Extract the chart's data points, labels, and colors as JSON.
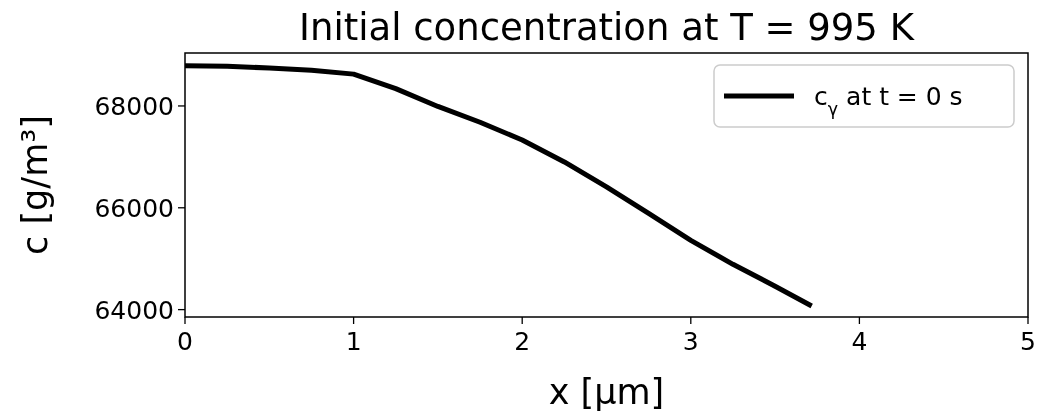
{
  "chart_data": {
    "type": "line",
    "title": "Initial concentration at T = 995 K",
    "xlabel": "x [μm]",
    "ylabel": "c [g/m³]",
    "x": [
      0,
      0.25,
      0.5,
      0.75,
      1,
      1.25,
      1.5,
      1.75,
      2,
      2.25,
      2.5,
      2.75,
      3,
      3.25,
      3.5,
      3.717
    ],
    "series": [
      {
        "name": "c$_{γ}$ at t = 0 s",
        "color": "#000000",
        "values": [
          68790,
          68780,
          68745,
          68700,
          68625,
          68340,
          67990,
          67680,
          67330,
          66900,
          66410,
          65890,
          65360,
          64890,
          64460,
          64070
        ]
      }
    ],
    "xlim": [
      0,
      5
    ],
    "xticks": [
      0,
      1,
      2,
      3,
      4,
      5
    ],
    "ylim": [
      63855,
      69040
    ],
    "yticks": [
      64000,
      66000,
      68000
    ],
    "grid": false,
    "legend": "top right",
    "marker": "none",
    "line_style": "solid"
  }
}
